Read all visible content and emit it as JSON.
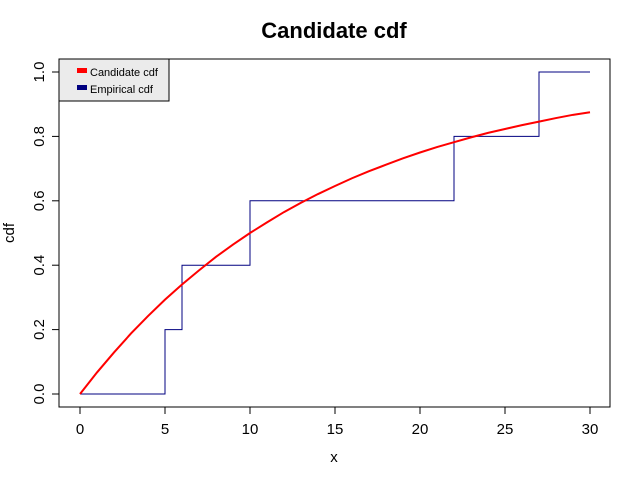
{
  "chart_data": {
    "type": "line",
    "title": "Candidate cdf",
    "xlabel": "x",
    "ylabel": "cdf",
    "xlim": [
      0,
      30
    ],
    "ylim": [
      0,
      1
    ],
    "xticks": [
      0,
      5,
      10,
      15,
      20,
      25,
      30
    ],
    "yticks": [
      0.0,
      0.2,
      0.4,
      0.6,
      0.8,
      1.0
    ],
    "ytick_labels": [
      "0.0",
      "0.2",
      "0.4",
      "0.6",
      "0.8",
      "1.0"
    ],
    "grid": false,
    "legend_position": "top-left",
    "series": [
      {
        "name": "Candidate cdf",
        "color": "#ff0000",
        "style": "smooth line",
        "x": [
          0,
          1,
          2,
          3,
          4,
          5,
          6,
          7,
          8,
          9,
          10,
          11,
          12,
          13,
          14,
          15,
          16,
          17,
          18,
          19,
          20,
          21,
          22,
          23,
          24,
          25,
          26,
          27,
          28,
          29,
          30
        ],
        "y": [
          0,
          0.067,
          0.129,
          0.188,
          0.242,
          0.293,
          0.34,
          0.384,
          0.426,
          0.464,
          0.5,
          0.533,
          0.565,
          0.594,
          0.621,
          0.646,
          0.67,
          0.692,
          0.712,
          0.732,
          0.75,
          0.767,
          0.782,
          0.797,
          0.811,
          0.823,
          0.835,
          0.846,
          0.857,
          0.867,
          0.875
        ]
      },
      {
        "name": "Empirical cdf",
        "color": "#000080",
        "style": "step",
        "x": [
          0,
          5,
          6,
          10,
          22,
          27,
          30
        ],
        "y": [
          0,
          0.2,
          0.4,
          0.6,
          0.8,
          1.0,
          1.0
        ]
      }
    ]
  }
}
